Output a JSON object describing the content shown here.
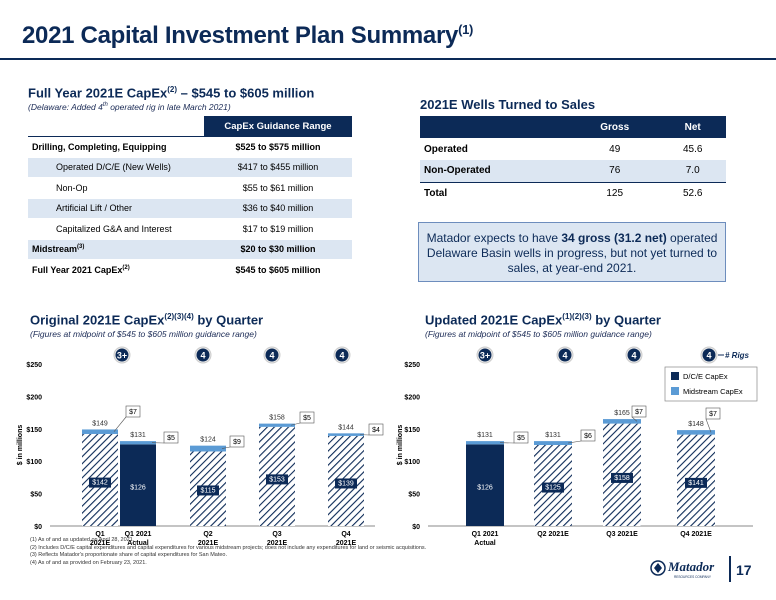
{
  "title": "2021 Capital Investment Plan Summary",
  "title_sup": "(1)",
  "capex": {
    "heading": "Full Year 2021E CapEx",
    "heading_sup": "(2)",
    "heading_rest": " – $545 to $605 million",
    "subtitle": "(Delaware: Added 4",
    "subtitle_sup": "th",
    "subtitle_rest": " operated rig in late March 2021)",
    "col_header": "CapEx Guidance Range",
    "rows": [
      {
        "label": "Drilling, Completing, Equipping",
        "value": "$525 to $575 million"
      },
      {
        "label": "Operated D/C/E (New Wells)",
        "value": "$417 to $455 million"
      },
      {
        "label": "Non-Op",
        "value": "$55 to $61 million"
      },
      {
        "label": "Artificial Lift / Other",
        "value": "$36 to $40 million"
      },
      {
        "label": "Capitalized G&A and Interest",
        "value": "$17 to $19 million"
      },
      {
        "label": "Midstream",
        "label_sup": "(3)",
        "value": "$20 to $30 million"
      },
      {
        "label": "Full Year 2021 CapEx",
        "label_sup": "(2)",
        "value": "$545 to $605 million"
      }
    ]
  },
  "wells": {
    "heading": "2021E Wells Turned to Sales",
    "headers": [
      "Gross",
      "Net"
    ],
    "rows": [
      {
        "label": "Operated",
        "gross": "49",
        "net": "45.6"
      },
      {
        "label": "Non-Operated",
        "gross": "76",
        "net": "7.0"
      },
      {
        "label": "Total",
        "gross": "125",
        "net": "52.6"
      }
    ]
  },
  "callout": {
    "pre": "Matador expects to have ",
    "bold": "34 gross (31.2 net)",
    "post": " operated Delaware Basin wells in progress, but not yet turned to sales, at year-end 2021."
  },
  "chart_left_heading": {
    "text": "Original 2021E CapEx",
    "sup": "(2)(3)(4)",
    "rest": " by Quarter",
    "sub": "(Figures at midpoint of $545 to $605 million guidance range)"
  },
  "chart_right_heading": {
    "text": "Updated 2021E CapEx",
    "sup": "(1)(2)(3)",
    "rest": " by Quarter",
    "sub": "(Figures at midpoint of $545 to $605 million guidance range)"
  },
  "chart_data": [
    {
      "type": "bar",
      "title": "Original 2021E CapEx by Quarter",
      "ylabel": "$ in millions",
      "ylim": [
        0,
        250
      ],
      "yticks": [
        "$0",
        "$50",
        "$100",
        "$150",
        "$200",
        "$250"
      ],
      "categories": [
        "Q1 2021E",
        "Q1 2021 Actual",
        "Q2 2021E",
        "Q3 2021E",
        "Q4 2021E"
      ],
      "series": [
        {
          "name": "D/C/E CapEx",
          "values": [
            142,
            126,
            115,
            153,
            139
          ],
          "labels": [
            "$142",
            "$126",
            "$115",
            "$153",
            "$139"
          ]
        },
        {
          "name": "Midstream CapEx",
          "values": [
            7,
            5,
            9,
            5,
            4
          ],
          "labels": [
            "$7",
            "$5",
            "$9",
            "$5",
            "$4"
          ]
        }
      ],
      "totals": [
        "$149",
        "$131",
        "$124",
        "$158",
        "$144"
      ],
      "rigs": [
        "3+",
        "4",
        "4",
        "4"
      ]
    },
    {
      "type": "bar",
      "title": "Updated 2021E CapEx by Quarter",
      "ylabel": "$ in millions",
      "ylim": [
        0,
        250
      ],
      "yticks": [
        "$0",
        "$50",
        "$100",
        "$150",
        "$200",
        "$250"
      ],
      "categories": [
        "Q1 2021 Actual",
        "Q2 2021E",
        "Q3 2021E",
        "Q4 2021E"
      ],
      "series": [
        {
          "name": "D/C/E CapEx",
          "values": [
            126,
            125,
            158,
            141
          ],
          "labels": [
            "$126",
            "$125",
            "$158",
            "$141"
          ]
        },
        {
          "name": "Midstream CapEx",
          "values": [
            5,
            6,
            7,
            7
          ],
          "labels": [
            "$5",
            "$6",
            "$7",
            "$7"
          ]
        }
      ],
      "totals": [
        "$131",
        "$131",
        "$165",
        "$148"
      ],
      "rigs": [
        "3+",
        "4",
        "4",
        "4"
      ],
      "rigs_label": "# Rigs",
      "legend": [
        "D/C/E CapEx",
        "Midstream CapEx"
      ]
    }
  ],
  "footnotes": [
    "(1)   As of and as updated on April 28, 2021.",
    "(2)   Includes D/C/E capital expenditures and capital expenditures for various midstream projects; does not include any expenditures for land or seismic acquisitions.",
    "(3)   Reflects Matador's proportionate share of capital expenditures for San Mateo.",
    "(4)   As of and as provided on February 23, 2021."
  ],
  "page_number": "17",
  "logo_text": "Matador",
  "logo_sub": "RESOURCES COMPANY",
  "colors": {
    "navy": "#0c2a57",
    "dce": "#0c2a57",
    "midstream": "#5b9bd5",
    "light_blue": "#dce6f2"
  }
}
